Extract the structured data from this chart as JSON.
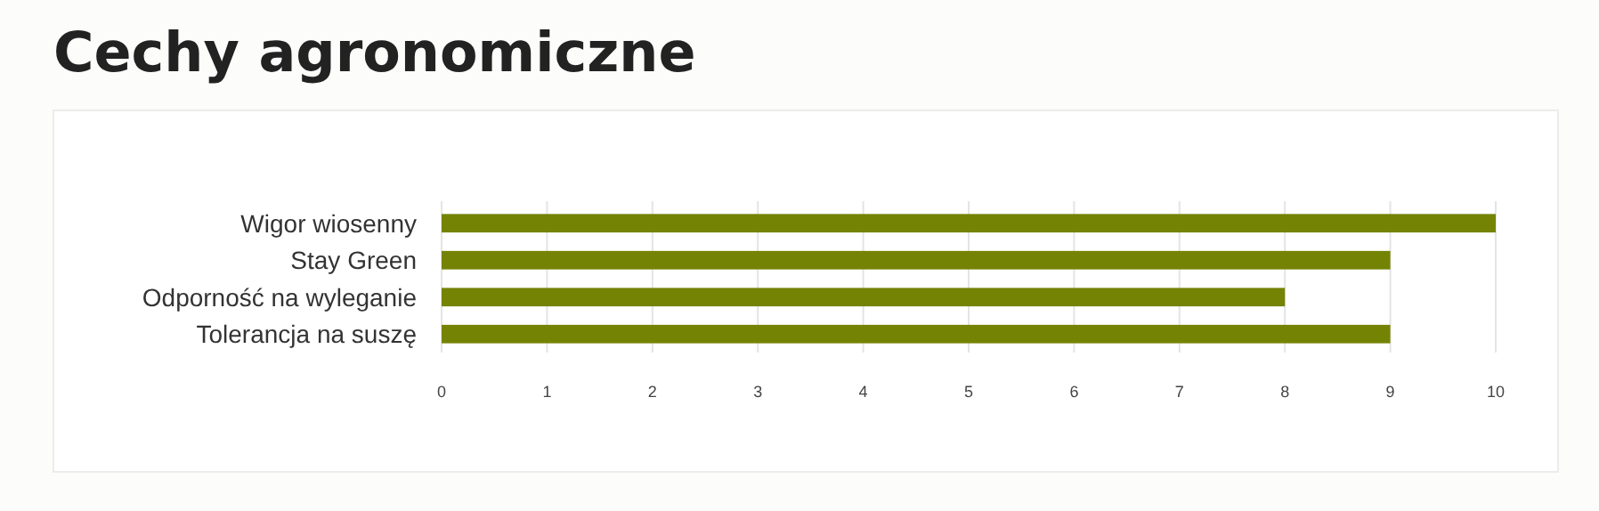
{
  "chart_data": {
    "type": "bar",
    "orientation": "horizontal",
    "title": "Cechy agronomiczne",
    "categories": [
      "Wigor wiosenny",
      "Stay Green",
      "Odporność na wyleganie",
      "Tolerancja na suszę"
    ],
    "values": [
      10,
      9,
      8,
      9
    ],
    "color": "#758305",
    "xlim": [
      0,
      10
    ],
    "xticks": [
      0,
      1,
      2,
      3,
      4,
      5,
      6,
      7,
      8,
      9,
      10
    ],
    "grid": "x"
  }
}
